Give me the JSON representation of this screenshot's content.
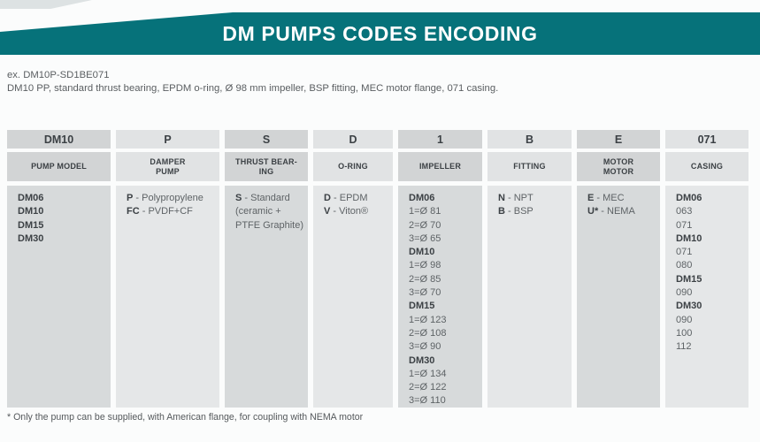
{
  "header": {
    "title": "DM PUMPS CODES ENCODING"
  },
  "example": {
    "code_line": "ex. DM10P-SD1BE071",
    "description": "DM10 PP, standard thrust bearing, EPDM o-ring, Ø 98 mm impeller, BSP fitting, MEC motor flange, 071 casing."
  },
  "table": {
    "widths": [
      117,
      117,
      94,
      90,
      95,
      95,
      94,
      94
    ],
    "columns": [
      {
        "code": "DM10",
        "category": "PUMP MODEL",
        "lines": [
          {
            "b": "DM06"
          },
          {
            "b": "DM10"
          },
          {
            "b": "DM15"
          },
          {
            "b": "DM30"
          }
        ]
      },
      {
        "code": "P",
        "category": "DAMPER\nPUMP",
        "lines": [
          {
            "b": "P",
            "t": " - Polypropylene"
          },
          {
            "b": "FC",
            "t": " - PVDF+CF"
          }
        ]
      },
      {
        "code": "S",
        "category": "THRUST BEAR-\nING",
        "lines": [
          {
            "b": "S",
            "t": " - Standard"
          },
          {
            "t": "(ceramic +"
          },
          {
            "t": "PTFE Graphite)"
          }
        ]
      },
      {
        "code": "D",
        "category": "O-RING",
        "lines": [
          {
            "b": "D",
            "t": " - EPDM"
          },
          {
            "b": "V",
            "t": " - Viton®"
          }
        ]
      },
      {
        "code": "1",
        "category": "IMPELLER",
        "lines": [
          {
            "b": "DM06"
          },
          {
            "t": "1=Ø 81"
          },
          {
            "t": "2=Ø 70"
          },
          {
            "t": "3=Ø 65"
          },
          {
            "b": "DM10"
          },
          {
            "t": "1=Ø 98"
          },
          {
            "t": "2=Ø 85"
          },
          {
            "t": "3=Ø 70"
          },
          {
            "b": "DM15"
          },
          {
            "t": "1=Ø 123"
          },
          {
            "t": "2=Ø 108"
          },
          {
            "t": "3=Ø 90"
          },
          {
            "b": "DM30"
          },
          {
            "t": "1=Ø 134"
          },
          {
            "t": "2=Ø 122"
          },
          {
            "t": "3=Ø 110"
          }
        ]
      },
      {
        "code": "B",
        "category": "FITTING",
        "lines": [
          {
            "b": "N",
            "t": " - NPT"
          },
          {
            "b": "B",
            "t": " - BSP"
          }
        ]
      },
      {
        "code": "E",
        "category": "MOTOR\nMOTOR",
        "lines": [
          {
            "b": "E",
            "t": " - MEC"
          },
          {
            "b": "U*",
            "t": " - NEMA"
          }
        ]
      },
      {
        "code": "071",
        "category": "CASING",
        "lines": [
          {
            "b": "DM06"
          },
          {
            "t": "063"
          },
          {
            "t": "071"
          },
          {
            "b": "DM10"
          },
          {
            "t": "071"
          },
          {
            "t": "080"
          },
          {
            "b": "DM15"
          },
          {
            "t": "090"
          },
          {
            "b": "DM30"
          },
          {
            "t": "090"
          },
          {
            "t": "100"
          },
          {
            "t": "112"
          }
        ]
      }
    ]
  },
  "footnote": "* Only the pump can be supplied, with American flange, for coupling with NEMA motor",
  "colors": {
    "teal": "#06727a",
    "header_cell_dark": "#d2d4d5",
    "header_cell_light": "#e1e3e4",
    "body_cell_dark": "#d7dadb",
    "body_cell_light": "#e5e7e8"
  }
}
